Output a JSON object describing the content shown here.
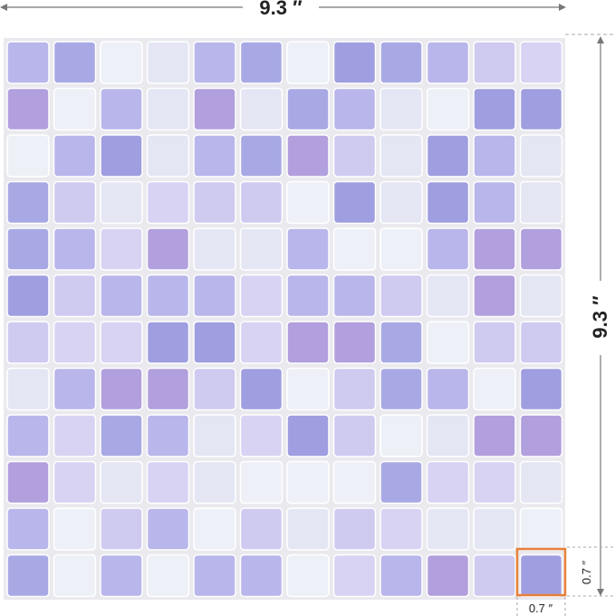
{
  "dimensions": {
    "width": "9.3 ″",
    "height": "9.3 ″",
    "tile_width": "0.7 ″",
    "tile_height": "0.7 ″"
  }
}
